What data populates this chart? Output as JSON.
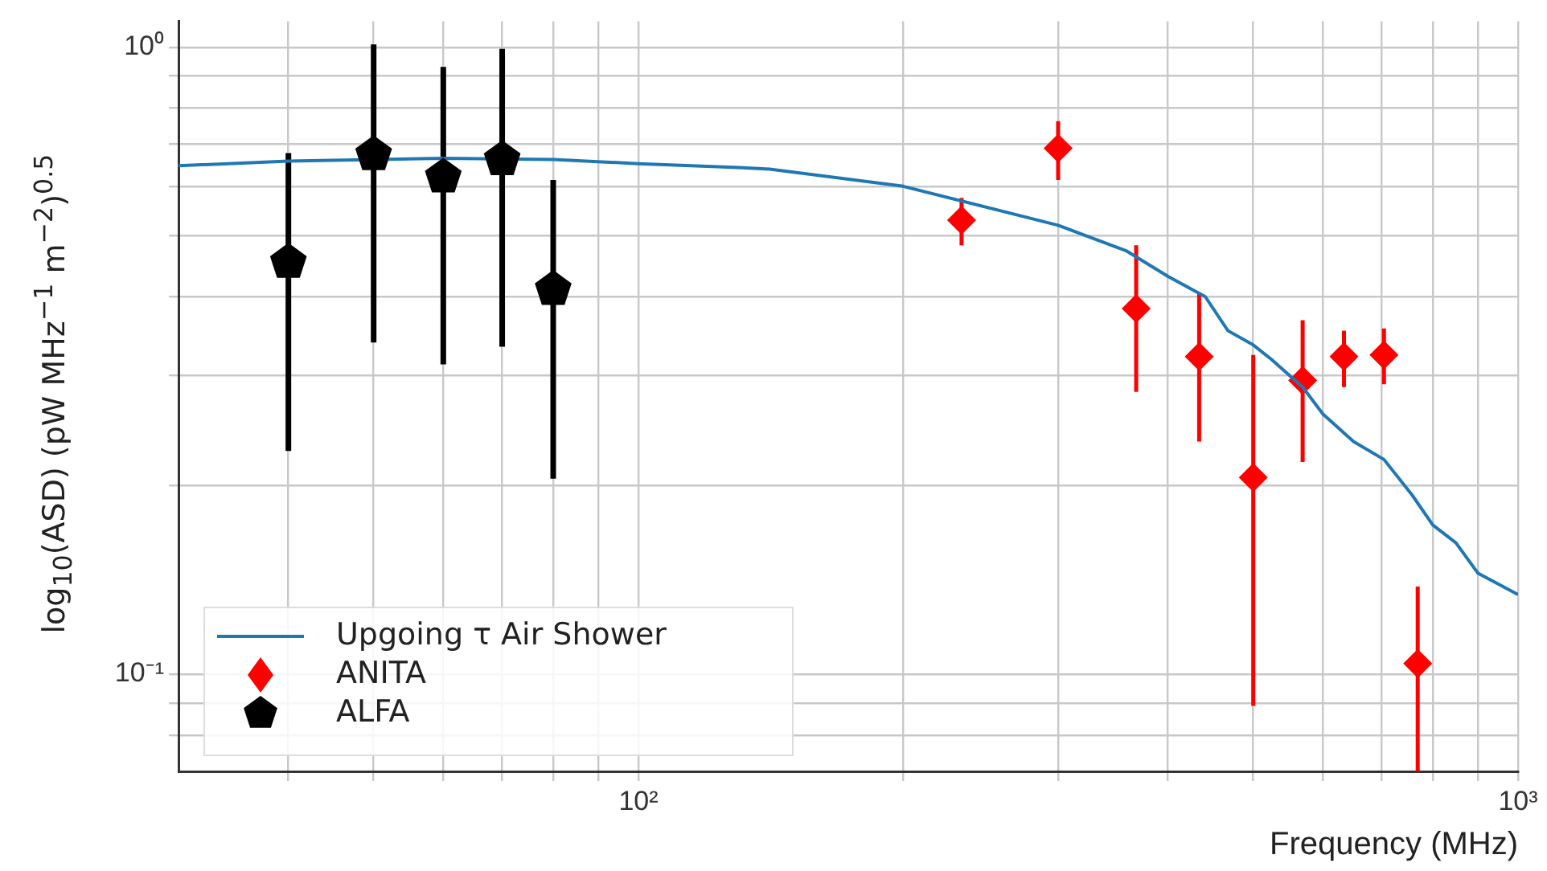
{
  "chart_data": {
    "type": "scatter",
    "xlabel": "Frequency (MHz)",
    "ylabel": "log$_{10}$(ASD) (pW MHz$^{−1}$ m$^{−2}$)$^{0.5}$",
    "log": "xy",
    "grid": true,
    "legend": "bottom left",
    "xlim": [
      30,
      1000
    ],
    "ylim": [
      0.07,
      1.1
    ],
    "xticks": [
      {
        "value": 40,
        "label": null
      },
      {
        "value": 50,
        "label": null
      },
      {
        "value": 60,
        "label": null
      },
      {
        "value": 70,
        "label": null
      },
      {
        "value": 80,
        "label": null
      },
      {
        "value": 90,
        "label": null
      },
      {
        "value": 100,
        "label": "10²"
      },
      {
        "value": 200,
        "label": null
      },
      {
        "value": 300,
        "label": null
      },
      {
        "value": 400,
        "label": null
      },
      {
        "value": 500,
        "label": null
      },
      {
        "value": 600,
        "label": null
      },
      {
        "value": 700,
        "label": null
      },
      {
        "value": 800,
        "label": null
      },
      {
        "value": 900,
        "label": null
      },
      {
        "value": 1000,
        "label": "10³"
      }
    ],
    "yticks": [
      {
        "value": 0.08,
        "label": null
      },
      {
        "value": 0.09,
        "label": null
      },
      {
        "value": 0.1,
        "label": "10⁻¹"
      },
      {
        "value": 0.2,
        "label": null
      },
      {
        "value": 0.3,
        "label": null
      },
      {
        "value": 0.4,
        "label": null
      },
      {
        "value": 0.5,
        "label": null
      },
      {
        "value": 0.6,
        "label": null
      },
      {
        "value": 0.7,
        "label": null
      },
      {
        "value": 0.8,
        "label": null
      },
      {
        "value": 0.9,
        "label": null
      },
      {
        "value": 1,
        "label": "10⁰"
      }
    ],
    "series": [
      {
        "name": "Upgoing τ Air Shower",
        "type": "line",
        "color": "#1f77b4",
        "marker": "none",
        "x": [
          30,
          40,
          60,
          80,
          100,
          130,
          141,
          200,
          300,
          359,
          400,
          441,
          468,
          500,
          524,
          569,
          600,
          650,
          704,
          758,
          800,
          850,
          900,
          1000
        ],
        "values": [
          0.647,
          0.658,
          0.665,
          0.662,
          0.652,
          0.643,
          0.639,
          0.6,
          0.52,
          0.473,
          0.431,
          0.4,
          0.353,
          0.335,
          0.318,
          0.287,
          0.26,
          0.235,
          0.22,
          0.193,
          0.173,
          0.162,
          0.145,
          0.134
        ]
      },
      {
        "name": "ANITA",
        "color": "#ff0000",
        "marker": "diamond",
        "x": [
          233,
          300,
          368,
          434,
          500,
          569,
          634,
          704,
          769
        ],
        "values": [
          0.53,
          0.69,
          0.383,
          0.321,
          0.206,
          0.294,
          0.321,
          0.323,
          0.104
        ],
        "errors": [
          [
            0.483,
            0.575
          ],
          [
            0.614,
            0.762
          ],
          [
            0.282,
            0.483
          ],
          [
            0.235,
            0.406
          ],
          [
            0.089,
            0.323
          ],
          [
            0.218,
            0.367
          ],
          [
            0.287,
            0.353
          ],
          [
            0.29,
            0.356
          ],
          [
            0.07,
            0.138
          ]
        ]
      },
      {
        "name": "ALFA",
        "color": "#000000",
        "x": [
          40,
          50,
          60,
          70,
          80
        ],
        "values": [
          0.454,
          0.674,
          0.621,
          0.662,
          0.411
        ],
        "errors": [
          [
            0.227,
            0.678
          ],
          [
            0.338,
            1.01
          ],
          [
            0.312,
            0.93
          ],
          [
            0.333,
            0.994
          ],
          [
            0.205,
            0.614
          ]
        ]
      }
    ]
  }
}
